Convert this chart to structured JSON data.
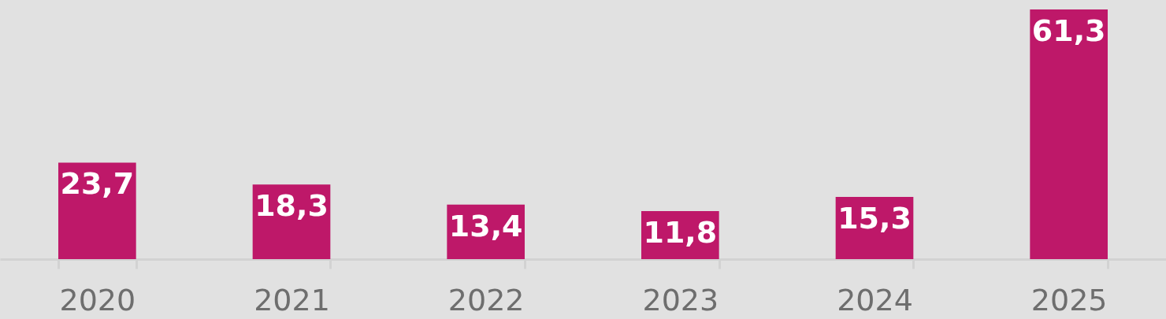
{
  "chart_data": {
    "type": "bar",
    "categories": [
      "2020",
      "2021",
      "2022",
      "2023",
      "2024",
      "2025"
    ],
    "values": [
      23.7,
      18.3,
      13.4,
      11.8,
      15.3,
      61.3
    ],
    "value_labels": [
      "23,7",
      "18,3",
      "13,4",
      "11,8",
      "15,3",
      "61,3"
    ],
    "color": "#be1869",
    "tick_labels": "x"
  }
}
